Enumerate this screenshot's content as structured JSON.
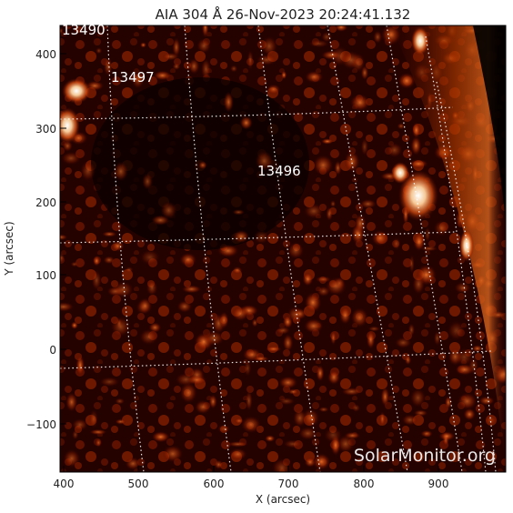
{
  "title": "AIA 304 Å 26-Nov-2023 20:24:41.132",
  "xlabel": "X (arcsec)",
  "ylabel": "Y (arcsec)",
  "x_ticks": [
    "400",
    "500",
    "600",
    "700",
    "800",
    "900"
  ],
  "y_ticks": [
    "400",
    "300",
    "200",
    "100",
    "0",
    "−100"
  ],
  "active_regions": [
    "13490",
    "13497",
    "13496"
  ],
  "watermark": "SolarMonitor.org",
  "colors": {
    "background": "#000000",
    "plasma_dark": "#3a0000",
    "plasma_mid": "#a02a00",
    "plasma_bright": "#ffd6a0",
    "grid": "#ffffff"
  }
}
